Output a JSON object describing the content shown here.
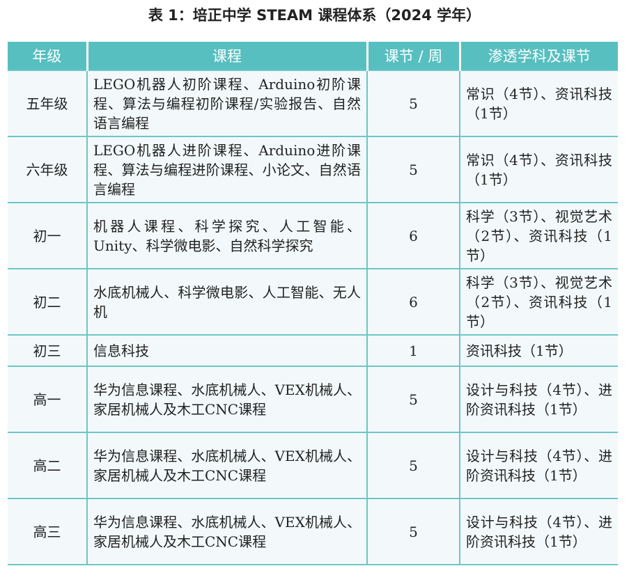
{
  "title": "表 1：培正中学 STEAM 课程体系（2024 学年）",
  "headers": [
    "年级",
    "课程",
    "课节 / 周",
    "渗透学科及课节"
  ],
  "rows": [
    {
      "grade": "五年级",
      "courses": "LEGO机器人初阶课程、Arduino初阶课程、算法与编程初阶课程/实验报告、自然语言编程",
      "periods": "5",
      "subjects": "常识（4节）、资讯科技（1节）"
    },
    {
      "grade": "六年级",
      "courses": "LEGO机器人进阶课程、Arduino进阶课程、算法与编程进阶课程、小论文、自然语言编程",
      "periods": "5",
      "subjects": "常识（4节）、资讯科技（1节）"
    },
    {
      "grade": "初一",
      "courses": "机器人课程、科学探究、人工智能、Unity、科学微电影、自然科学探究",
      "periods": "6",
      "subjects": "科学（3节）、视觉艺术（2节）、资讯科技（1节）"
    },
    {
      "grade": "初二",
      "courses": "水底机械人、科学微电影、人工智能、无人机",
      "periods": "6",
      "subjects": "科学（3节）、视觉艺术（2节）、资讯科技（1节）"
    },
    {
      "grade": "初三",
      "courses": "信息科技",
      "periods": "1",
      "subjects": "资讯科技（1节）"
    },
    {
      "grade": "高一",
      "courses": "华为信息课程、水底机械人、VEX机械人、家居机械人及木工CNC课程",
      "periods": "5",
      "subjects": "设计与科技（4节）、进阶资讯科技（1节）"
    },
    {
      "grade": "高二",
      "courses": "华为信息课程、水底机械人、VEX机械人、家居机械人及木工CNC课程",
      "periods": "5",
      "subjects": "设计与科技（4节）、进阶资讯科技（1节）"
    },
    {
      "grade": "高三",
      "courses": "华为信息课程、水底机械人、VEX机械人、家居机械人及木工CNC课程",
      "periods": "5",
      "subjects": "设计与科技（4节）、进阶资讯科技（1节）"
    }
  ]
}
